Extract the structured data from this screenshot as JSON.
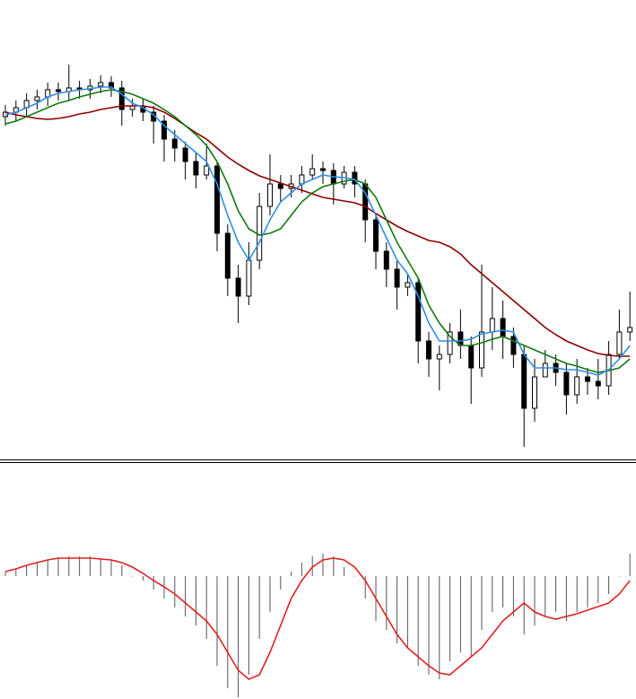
{
  "chart_data": [
    {
      "type": "candlestick",
      "categories": [
        null,
        null,
        null,
        null,
        null,
        null,
        null,
        null,
        null,
        null,
        null,
        null,
        null,
        null,
        null,
        null,
        null,
        null,
        null,
        null,
        null,
        null,
        null,
        null,
        null,
        null,
        null,
        null,
        null,
        null,
        null,
        null,
        null,
        null,
        null,
        null,
        null,
        null,
        null,
        null,
        null,
        null,
        null,
        null,
        null,
        null,
        null,
        null,
        null,
        null,
        null,
        null,
        null,
        null,
        null,
        null,
        null,
        null,
        null,
        null
      ],
      "open": [
        382,
        387,
        392,
        400,
        404,
        412,
        410,
        414,
        412,
        416,
        420,
        414,
        390,
        394,
        387,
        377,
        357,
        347,
        332,
        317,
        327,
        252,
        202,
        182,
        222,
        282,
        307,
        302,
        307,
        317,
        324,
        322,
        307,
        320,
        307,
        267,
        232,
        212,
        192,
        197,
        132,
        112,
        117,
        142,
        127,
        102,
        142,
        157,
        137,
        117,
        57,
        92,
        107,
        97,
        72,
        92,
        87,
        82,
        117,
        142
      ],
      "high": [
        395,
        400,
        408,
        412,
        420,
        420,
        440,
        422,
        424,
        428,
        427,
        422,
        402,
        402,
        394,
        384,
        367,
        354,
        342,
        352,
        332,
        262,
        217,
        242,
        297,
        340,
        317,
        317,
        327,
        340,
        332,
        330,
        327,
        327,
        312,
        272,
        242,
        222,
        207,
        202,
        142,
        127,
        152,
        167,
        137,
        217,
        192,
        177,
        147,
        127,
        112,
        122,
        117,
        107,
        112,
        102,
        112,
        132,
        167,
        187
      ],
      "low": [
        372,
        377,
        382,
        390,
        394,
        400,
        400,
        402,
        402,
        408,
        404,
        372,
        382,
        377,
        352,
        332,
        332,
        312,
        302,
        312,
        232,
        182,
        152,
        172,
        212,
        272,
        287,
        292,
        297,
        312,
        307,
        284,
        302,
        292,
        242,
        212,
        192,
        167,
        182,
        107,
        92,
        77,
        107,
        112,
        62,
        92,
        122,
        112,
        102,
        14,
        42,
        92,
        82,
        50,
        62,
        72,
        67,
        72,
        112,
        132
      ],
      "close": [
        387,
        392,
        400,
        404,
        412,
        410,
        414,
        412,
        416,
        420,
        414,
        390,
        394,
        387,
        377,
        357,
        347,
        332,
        317,
        327,
        252,
        202,
        182,
        222,
        282,
        307,
        302,
        307,
        317,
        324,
        322,
        307,
        320,
        307,
        267,
        232,
        212,
        192,
        197,
        132,
        112,
        117,
        142,
        127,
        102,
        142,
        157,
        137,
        117,
        57,
        92,
        107,
        97,
        72,
        92,
        87,
        82,
        117,
        142,
        147
      ],
      "up_color": "#ffffff",
      "down_color": "#000000",
      "edge_color": "#000000",
      "series": [
        {
          "color": "#8b0000",
          "values": [
            387,
            384,
            382,
            380,
            379,
            380,
            382,
            385,
            387,
            390,
            392,
            394,
            394,
            394,
            392,
            387,
            380,
            372,
            364,
            357,
            347,
            337,
            329,
            322,
            316,
            312,
            308,
            304,
            300,
            296,
            292,
            290,
            288,
            286,
            282,
            274,
            267,
            260,
            254,
            249,
            244,
            242,
            237,
            229,
            217,
            207,
            197,
            187,
            177,
            167,
            157,
            147,
            139,
            132,
            127,
            122,
            118,
            116,
            115,
            115
          ]
        },
        {
          "color": "#107a10",
          "values": [
            374,
            377,
            382,
            387,
            392,
            397,
            400,
            404,
            407,
            410,
            412,
            410,
            407,
            402,
            397,
            390,
            382,
            372,
            362,
            350,
            332,
            307,
            277,
            257,
            250,
            252,
            257,
            272,
            287,
            297,
            304,
            307,
            310,
            312,
            307,
            292,
            267,
            242,
            222,
            202,
            172,
            152,
            137,
            127,
            127,
            130,
            134,
            137,
            132,
            127,
            122,
            117,
            112,
            107,
            104,
            100,
            97,
            99,
            102,
            112
          ]
        },
        {
          "color": "#2b8fe6",
          "values": [
            384,
            387,
            392,
            397,
            404,
            408,
            410,
            412,
            413,
            415,
            415,
            407,
            397,
            392,
            384,
            372,
            362,
            352,
            342,
            332,
            307,
            272,
            242,
            222,
            242,
            267,
            287,
            297,
            307,
            312,
            317,
            315,
            314,
            312,
            297,
            272,
            247,
            222,
            207,
            182,
            152,
            132,
            132,
            132,
            134,
            140,
            142,
            144,
            142,
            117,
            102,
            102,
            102,
            100,
            100,
            97,
            94,
            100,
            112,
            127
          ]
        }
      ],
      "ylim": [
        0,
        512
      ]
    },
    {
      "type": "bar",
      "values": [
        5,
        8,
        12,
        15,
        18,
        20,
        22,
        22,
        22,
        20,
        18,
        12,
        0,
        -5,
        -15,
        -25,
        -35,
        -45,
        -55,
        -70,
        -100,
        -125,
        -135,
        -110,
        -70,
        -40,
        -15,
        5,
        15,
        22,
        25,
        22,
        10,
        0,
        -25,
        -50,
        -60,
        -75,
        -80,
        -100,
        -110,
        -115,
        -95,
        -85,
        -90,
        -60,
        -40,
        -35,
        -45,
        -65,
        -55,
        -45,
        -40,
        -50,
        -40,
        -35,
        -30,
        -20,
        0,
        25
      ],
      "color": "#555555",
      "series": [
        {
          "color": "#e02020",
          "values": [
            5,
            8,
            12,
            15,
            18,
            20,
            20,
            20,
            20,
            19,
            18,
            15,
            10,
            3,
            -5,
            -12,
            -20,
            -30,
            -40,
            -50,
            -65,
            -85,
            -105,
            -115,
            -110,
            -85,
            -55,
            -25,
            -5,
            10,
            18,
            20,
            18,
            10,
            -5,
            -25,
            -45,
            -65,
            -80,
            -90,
            -100,
            -108,
            -110,
            -100,
            -90,
            -80,
            -65,
            -50,
            -40,
            -30,
            -40,
            -45,
            -48,
            -45,
            -42,
            -38,
            -34,
            -30,
            -20,
            -5
          ]
        }
      ],
      "ylim": [
        -137,
        82
      ]
    }
  ]
}
